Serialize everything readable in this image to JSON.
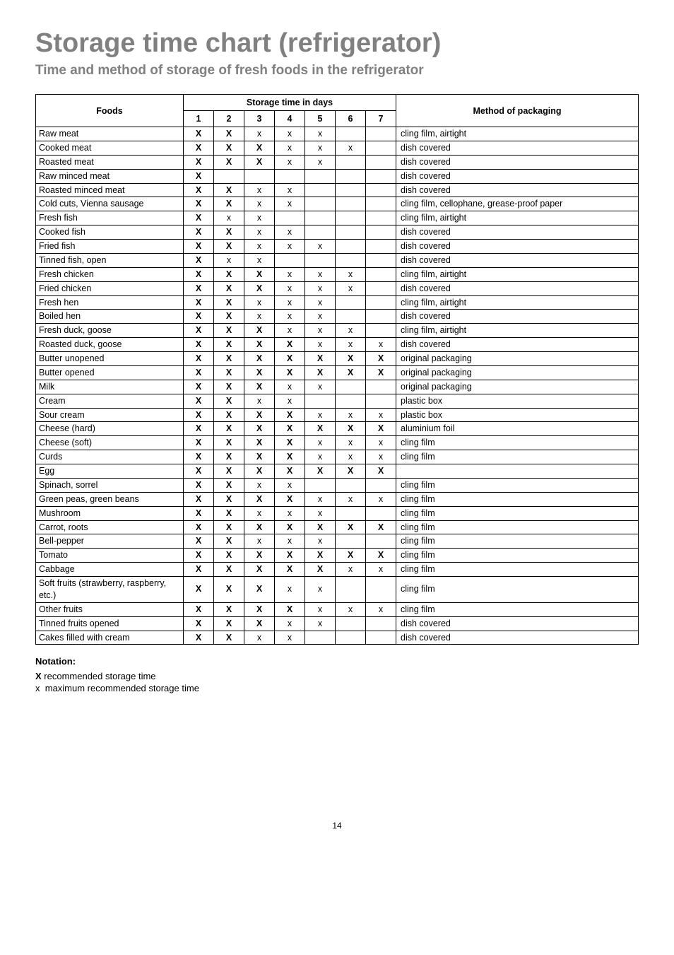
{
  "title": "Storage time chart (refrigerator)",
  "subtitle": "Time and method of storage of fresh foods in the refrigerator",
  "columns": {
    "foods": "Foods",
    "storage": "Storage time in days",
    "days": [
      "1",
      "2",
      "3",
      "4",
      "5",
      "6",
      "7"
    ],
    "packaging": "Method of packaging"
  },
  "rows": [
    {
      "food": "Raw meat",
      "d": [
        "X",
        "X",
        "x",
        "x",
        "x",
        "",
        ""
      ],
      "pack": "cling film, airtight"
    },
    {
      "food": "Cooked meat",
      "d": [
        "X",
        "X",
        "X",
        "x",
        "x",
        "x",
        ""
      ],
      "pack": "dish covered"
    },
    {
      "food": "Roasted meat",
      "d": [
        "X",
        "X",
        "X",
        "x",
        "x",
        "",
        ""
      ],
      "pack": "dish covered"
    },
    {
      "food": "Raw minced meat",
      "d": [
        "X",
        "",
        "",
        "",
        "",
        "",
        ""
      ],
      "pack": "dish covered"
    },
    {
      "food": "Roasted minced meat",
      "d": [
        "X",
        "X",
        "x",
        "x",
        "",
        "",
        ""
      ],
      "pack": "dish covered"
    },
    {
      "food": "Cold cuts, Vienna sausage",
      "d": [
        "X",
        "X",
        "x",
        "x",
        "",
        "",
        ""
      ],
      "pack": "cling film, cellophane, grease-proof paper"
    },
    {
      "food": "Fresh fish",
      "d": [
        "X",
        "x",
        "x",
        "",
        "",
        "",
        ""
      ],
      "pack": "cling film, airtight"
    },
    {
      "food": "Cooked fish",
      "d": [
        "X",
        "X",
        "x",
        "x",
        "",
        "",
        ""
      ],
      "pack": "dish covered"
    },
    {
      "food": "Fried fish",
      "d": [
        "X",
        "X",
        "x",
        "x",
        "x",
        "",
        ""
      ],
      "pack": "dish covered"
    },
    {
      "food": "Tinned fish, open",
      "d": [
        "X",
        "x",
        "x",
        "",
        "",
        "",
        ""
      ],
      "pack": "dish covered"
    },
    {
      "food": "Fresh chicken",
      "d": [
        "X",
        "X",
        "X",
        "x",
        "x",
        "x",
        ""
      ],
      "pack": "cling film, airtight"
    },
    {
      "food": "Fried chicken",
      "d": [
        "X",
        "X",
        "X",
        "x",
        "x",
        "x",
        ""
      ],
      "pack": "dish covered"
    },
    {
      "food": "Fresh hen",
      "d": [
        "X",
        "X",
        "x",
        "x",
        "x",
        "",
        ""
      ],
      "pack": "cling film, airtight"
    },
    {
      "food": "Boiled hen",
      "d": [
        "X",
        "X",
        "x",
        "x",
        "x",
        "",
        ""
      ],
      "pack": "dish covered"
    },
    {
      "food": "Fresh duck, goose",
      "d": [
        "X",
        "X",
        "X",
        "x",
        "x",
        "x",
        ""
      ],
      "pack": "cling film, airtight"
    },
    {
      "food": "Roasted duck, goose",
      "d": [
        "X",
        "X",
        "X",
        "X",
        "x",
        "x",
        "x"
      ],
      "pack": "dish covered"
    },
    {
      "food": "Butter unopened",
      "d": [
        "X",
        "X",
        "X",
        "X",
        "X",
        "X",
        "X"
      ],
      "pack": "original packaging"
    },
    {
      "food": "Butter opened",
      "d": [
        "X",
        "X",
        "X",
        "X",
        "X",
        "X",
        "X"
      ],
      "pack": "original packaging"
    },
    {
      "food": "Milk",
      "d": [
        "X",
        "X",
        "X",
        "x",
        "x",
        "",
        ""
      ],
      "pack": "original packaging"
    },
    {
      "food": "Cream",
      "d": [
        "X",
        "X",
        "x",
        "x",
        "",
        "",
        ""
      ],
      "pack": "plastic box"
    },
    {
      "food": "Sour cream",
      "d": [
        "X",
        "X",
        "X",
        "X",
        "x",
        "x",
        "x"
      ],
      "pack": "plastic box"
    },
    {
      "food": "Cheese (hard)",
      "d": [
        "X",
        "X",
        "X",
        "X",
        "X",
        "X",
        "X"
      ],
      "pack": "aluminium foil"
    },
    {
      "food": "Cheese (soft)",
      "d": [
        "X",
        "X",
        "X",
        "X",
        "x",
        "x",
        "x"
      ],
      "pack": "cling film"
    },
    {
      "food": "Curds",
      "d": [
        "X",
        "X",
        "X",
        "X",
        "x",
        "x",
        "x"
      ],
      "pack": "cling film"
    },
    {
      "food": "Egg",
      "d": [
        "X",
        "X",
        "X",
        "X",
        "X",
        "X",
        "X"
      ],
      "pack": ""
    },
    {
      "food": "Spinach, sorrel",
      "d": [
        "X",
        "X",
        "x",
        "x",
        "",
        "",
        ""
      ],
      "pack": "cling film"
    },
    {
      "food": "Green peas, green beans",
      "d": [
        "X",
        "X",
        "X",
        "X",
        "x",
        "x",
        "x"
      ],
      "pack": "cling film"
    },
    {
      "food": "Mushroom",
      "d": [
        "X",
        "X",
        "x",
        "x",
        "x",
        "",
        ""
      ],
      "pack": "cling film"
    },
    {
      "food": "Carrot, roots",
      "d": [
        "X",
        "X",
        "X",
        "X",
        "X",
        "X",
        "X"
      ],
      "pack": "cling film"
    },
    {
      "food": "Bell-pepper",
      "d": [
        "X",
        "X",
        "x",
        "x",
        "x",
        "",
        ""
      ],
      "pack": "cling film"
    },
    {
      "food": "Tomato",
      "d": [
        "X",
        "X",
        "X",
        "X",
        "X",
        "X",
        "X"
      ],
      "pack": "cling film"
    },
    {
      "food": "Cabbage",
      "d": [
        "X",
        "X",
        "X",
        "X",
        "X",
        "x",
        "x"
      ],
      "pack": "cling film"
    },
    {
      "food": "Soft fruits (strawberry, raspberry, etc.)",
      "d": [
        "X",
        "X",
        "X",
        "x",
        "x",
        "",
        ""
      ],
      "pack": "cling film",
      "twoLine": true
    },
    {
      "food": "Other fruits",
      "d": [
        "X",
        "X",
        "X",
        "X",
        "x",
        "x",
        "x"
      ],
      "pack": "cling film"
    },
    {
      "food": "Tinned fruits opened",
      "d": [
        "X",
        "X",
        "X",
        "x",
        "x",
        "",
        ""
      ],
      "pack": "dish covered"
    },
    {
      "food": "Cakes filled with cream",
      "d": [
        "X",
        "X",
        "x",
        "x",
        "",
        "",
        ""
      ],
      "pack": "dish covered"
    }
  ],
  "notation": {
    "heading": "Notation:",
    "rec": "recommended storage time",
    "recMark": "X",
    "max": "maximum recommended storage time",
    "maxMark": "x"
  },
  "pageNum": "14"
}
